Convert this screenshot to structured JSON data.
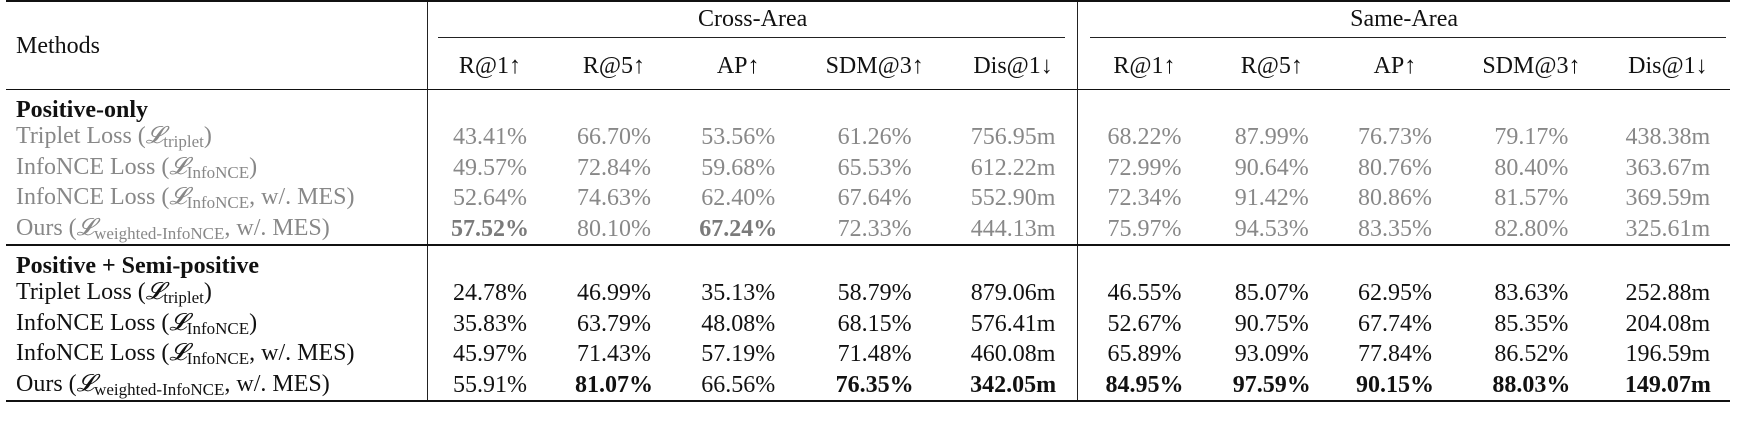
{
  "header": {
    "methods_label": "Methods",
    "cross_area_label": "Cross-Area",
    "same_area_label": "Same-Area",
    "metrics": [
      "R@1↑",
      "R@5↑",
      "AP↑",
      "SDM@3↑",
      "Dis@1↓"
    ]
  },
  "sections": [
    {
      "title": "Positive-only",
      "rows": [
        {
          "base": "Triplet Loss (",
          "sub": "triplet",
          "tail": ")",
          "cross": [
            "43.41%",
            "66.70%",
            "53.56%",
            "61.26%",
            "756.95m"
          ],
          "same": [
            "68.22%",
            "87.99%",
            "76.73%",
            "79.17%",
            "438.38m"
          ]
        },
        {
          "base": "InfoNCE Loss (",
          "sub": "InfoNCE",
          "tail": ")",
          "cross": [
            "49.57%",
            "72.84%",
            "59.68%",
            "65.53%",
            "612.22m"
          ],
          "same": [
            "72.99%",
            "90.64%",
            "80.76%",
            "80.40%",
            "363.67m"
          ]
        },
        {
          "base": "InfoNCE Loss (",
          "sub": "InfoNCE",
          "tail": ", w/. MES)",
          "cross": [
            "52.64%",
            "74.63%",
            "62.40%",
            "67.64%",
            "552.90m"
          ],
          "same": [
            "72.34%",
            "91.42%",
            "80.86%",
            "81.57%",
            "369.59m"
          ]
        },
        {
          "base": "Ours (",
          "sub": "weighted-InfoNCE",
          "tail": ", w/. MES)",
          "cross": [
            "57.52%",
            "80.10%",
            "67.24%",
            "72.33%",
            "444.13m"
          ],
          "same": [
            "75.97%",
            "94.53%",
            "83.35%",
            "82.80%",
            "325.61m"
          ]
        }
      ]
    },
    {
      "title": "Positive + Semi-positive",
      "rows": [
        {
          "base": "Triplet Loss (",
          "sub": "triplet",
          "tail": ")",
          "cross": [
            "24.78%",
            "46.99%",
            "35.13%",
            "58.79%",
            "879.06m"
          ],
          "same": [
            "46.55%",
            "85.07%",
            "62.95%",
            "83.63%",
            "252.88m"
          ]
        },
        {
          "base": "InfoNCE Loss (",
          "sub": "InfoNCE",
          "tail": ")",
          "cross": [
            "35.83%",
            "63.79%",
            "48.08%",
            "68.15%",
            "576.41m"
          ],
          "same": [
            "52.67%",
            "90.75%",
            "67.74%",
            "85.35%",
            "204.08m"
          ]
        },
        {
          "base": "InfoNCE Loss (",
          "sub": "InfoNCE",
          "tail": ", w/. MES)",
          "cross": [
            "45.97%",
            "71.43%",
            "57.19%",
            "71.48%",
            "460.08m"
          ],
          "same": [
            "65.89%",
            "93.09%",
            "77.84%",
            "86.52%",
            "196.59m"
          ]
        },
        {
          "base": "Ours (",
          "sub": "weighted-InfoNCE",
          "tail": ", w/. MES)",
          "cross": [
            "55.91%",
            "81.07%",
            "66.56%",
            "76.35%",
            "342.05m"
          ],
          "same": [
            "84.95%",
            "97.59%",
            "90.15%",
            "88.03%",
            "149.07m"
          ]
        }
      ]
    }
  ],
  "symbol": "𝓛",
  "colors": {
    "text": "#111111",
    "gray_text": "#888888"
  }
}
